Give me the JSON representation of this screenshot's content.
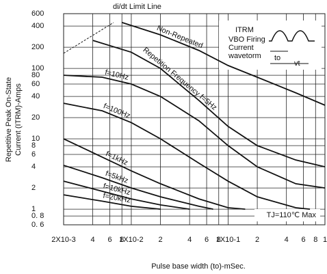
{
  "chart_data": {
    "type": "line",
    "y_label": [
      "Repetitive Peak On-State",
      "Current (ITRM)-Amps"
    ],
    "x_label": "Pulse base width (to)-mSec.",
    "annotations": {
      "limit": "di/dt Limit Line",
      "itrm": "ITRM",
      "vbo": "VBO Firing",
      "current": "Current",
      "waveform": "wavetorm",
      "to": "to",
      "vt": "vt",
      "tj": "TJ=110℃ Max"
    },
    "log_x": true,
    "log_y": true,
    "grid": true,
    "xlim": [
      0.002,
      1
    ],
    "ylim": [
      0.6,
      600
    ],
    "xticks": [
      {
        "value": 0.002,
        "label": "2X10-3"
      },
      {
        "value": 0.004,
        "label": "4"
      },
      {
        "value": 0.006,
        "label": "6"
      },
      {
        "value": 0.008,
        "label": "8"
      },
      {
        "value": 0.01,
        "label": "1X10-2"
      },
      {
        "value": 0.02,
        "label": "2"
      },
      {
        "value": 0.04,
        "label": "4"
      },
      {
        "value": 0.06,
        "label": "6"
      },
      {
        "value": 0.08,
        "label": "8"
      },
      {
        "value": 0.1,
        "label": "1X10-1"
      },
      {
        "value": 0.2,
        "label": "2"
      },
      {
        "value": 0.4,
        "label": "4"
      },
      {
        "value": 0.6,
        "label": "6"
      },
      {
        "value": 0.8,
        "label": "8"
      },
      1
    ],
    "yticks": [
      {
        "value": 0.6,
        "label": "0. 6"
      },
      {
        "value": 0.8,
        "label": "0. 8"
      },
      1,
      2,
      4,
      6,
      8,
      10,
      20,
      40,
      60,
      80,
      100,
      200,
      400,
      600
    ],
    "series": [
      {
        "name": "Non-Repeated",
        "color": "#111",
        "x": [
          0.008,
          0.02,
          0.05,
          0.1,
          0.2,
          0.5,
          1
        ],
        "values": [
          450,
          300,
          180,
          110,
          75,
          45,
          30
        ]
      },
      {
        "name": "Repetition Frequency f=5Hz",
        "color": "#111",
        "x": [
          0.004,
          0.01,
          0.02,
          0.05,
          0.1,
          0.2,
          0.5,
          1
        ],
        "values": [
          250,
          170,
          100,
          35,
          15,
          8,
          5,
          4
        ]
      },
      {
        "name": "f=10Hz",
        "color": "#111",
        "x": [
          0.002,
          0.005,
          0.01,
          0.02,
          0.05,
          0.1,
          0.2,
          0.5,
          1
        ],
        "values": [
          80,
          75,
          60,
          40,
          18,
          8,
          4,
          2.3,
          2
        ]
      },
      {
        "name": "f=100Hz",
        "color": "#111",
        "x": [
          0.002,
          0.005,
          0.01,
          0.02,
          0.05,
          0.1,
          0.2,
          0.5,
          0.7
        ],
        "values": [
          32,
          25,
          17,
          10,
          4.5,
          2.5,
          1.5,
          1.05,
          1
        ]
      },
      {
        "name": "f=1kHz",
        "color": "#111",
        "x": [
          0.002,
          0.005,
          0.01,
          0.02,
          0.05,
          0.1,
          0.15
        ],
        "values": [
          10,
          5.5,
          3.5,
          2.3,
          1.4,
          1.05,
          1
        ]
      },
      {
        "name": "f=5kHz",
        "color": "#111",
        "x": [
          0.002,
          0.005,
          0.01,
          0.02,
          0.05,
          0.07
        ],
        "values": [
          4.2,
          2.8,
          2,
          1.5,
          1.1,
          1
        ]
      },
      {
        "name": "f=10kHz",
        "color": "#111",
        "x": [
          0.002,
          0.005,
          0.01,
          0.02,
          0.04
        ],
        "values": [
          2.5,
          1.8,
          1.4,
          1.15,
          1
        ]
      },
      {
        "name": "f=20kHz",
        "color": "#111",
        "x": [
          0.002,
          0.005,
          0.01,
          0.02
        ],
        "values": [
          1.6,
          1.3,
          1.1,
          1
        ]
      }
    ]
  }
}
